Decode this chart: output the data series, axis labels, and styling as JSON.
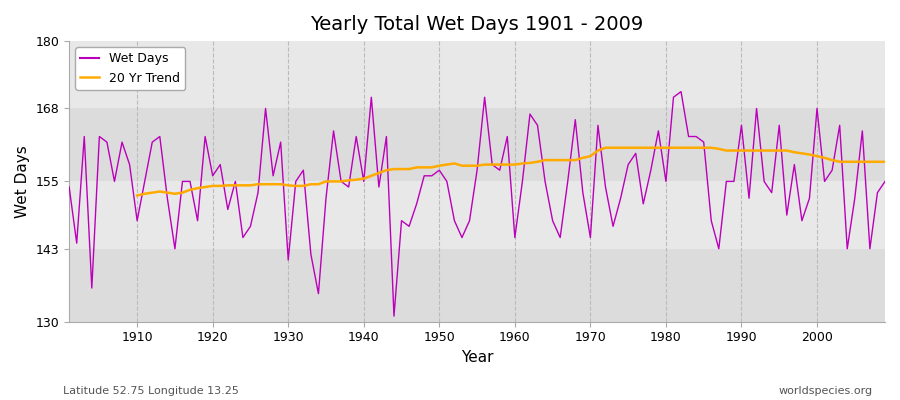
{
  "title": "Yearly Total Wet Days 1901 - 2009",
  "xlabel": "Year",
  "ylabel": "Wet Days",
  "subtitle_left": "Latitude 52.75 Longitude 13.25",
  "subtitle_right": "worldspecies.org",
  "ylim": [
    130,
    180
  ],
  "yticks": [
    130,
    143,
    155,
    168,
    180
  ],
  "wet_days_color": "#bb00bb",
  "trend_color": "#ffaa00",
  "fig_bg_color": "#ffffff",
  "plot_bg_color": "#e8e8e8",
  "band_colors": [
    "#dcdcdc",
    "#e8e8e8"
  ],
  "wet_days": [
    154,
    144,
    163,
    136,
    163,
    162,
    155,
    162,
    158,
    148,
    155,
    162,
    163,
    152,
    143,
    155,
    155,
    148,
    163,
    156,
    158,
    150,
    155,
    145,
    147,
    153,
    168,
    156,
    162,
    141,
    155,
    157,
    142,
    135,
    152,
    164,
    155,
    154,
    163,
    155,
    170,
    154,
    163,
    131,
    148,
    147,
    151,
    156,
    156,
    157,
    155,
    148,
    145,
    148,
    157,
    170,
    158,
    157,
    163,
    145,
    155,
    167,
    165,
    155,
    148,
    145,
    155,
    166,
    153,
    145,
    165,
    154,
    147,
    152,
    158,
    160,
    151,
    157,
    164,
    155,
    170,
    171,
    163,
    163,
    162,
    148,
    143,
    155,
    155,
    165,
    152,
    168,
    155,
    153,
    165,
    149,
    158,
    148,
    152,
    168,
    155,
    157,
    165,
    143,
    152,
    164,
    143,
    153,
    155
  ],
  "trend": [
    null,
    null,
    null,
    null,
    null,
    null,
    null,
    null,
    null,
    152.5,
    152.8,
    153.0,
    153.2,
    153.0,
    152.8,
    153.0,
    153.5,
    153.8,
    154.0,
    154.2,
    154.2,
    154.3,
    154.3,
    154.3,
    154.3,
    154.5,
    154.5,
    154.5,
    154.5,
    154.3,
    154.2,
    154.2,
    154.5,
    154.5,
    155.0,
    155.0,
    155.0,
    155.2,
    155.3,
    155.5,
    156.0,
    156.5,
    157.0,
    157.2,
    157.2,
    157.2,
    157.5,
    157.5,
    157.5,
    157.8,
    158.0,
    158.2,
    157.8,
    157.8,
    157.8,
    158.0,
    158.0,
    158.0,
    158.0,
    158.0,
    158.2,
    158.3,
    158.5,
    158.8,
    158.8,
    158.8,
    158.8,
    158.8,
    159.2,
    159.5,
    160.5,
    161.0,
    161.0,
    161.0,
    161.0,
    161.0,
    161.0,
    161.0,
    161.0,
    161.0,
    161.0,
    161.0,
    161.0,
    161.0,
    161.0,
    161.0,
    160.8,
    160.5,
    160.5,
    160.5,
    160.5,
    160.5,
    160.5,
    160.5,
    160.5,
    160.5,
    160.2,
    160.0,
    159.8,
    159.5,
    159.2,
    158.8,
    158.5,
    158.5,
    158.5,
    158.5,
    158.5,
    158.5,
    158.5
  ]
}
